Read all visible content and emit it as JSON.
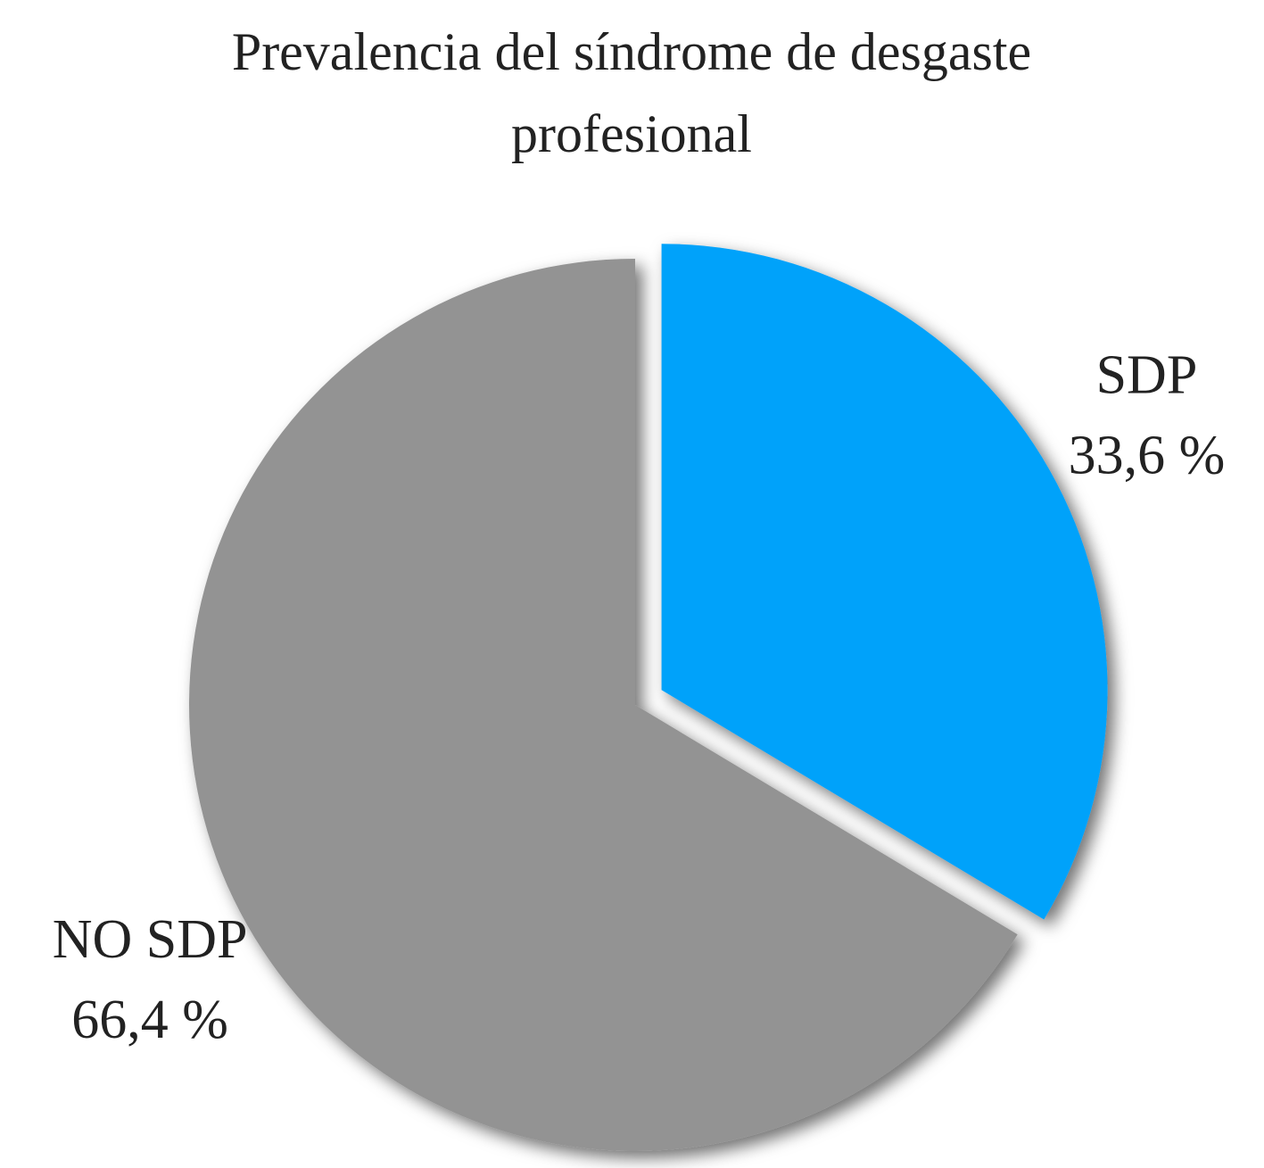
{
  "chart_data": {
    "type": "pie",
    "title": "Prevalencia del síndrome de desgaste profesional",
    "categories": [
      "SDP",
      "NO SDP"
    ],
    "values": [
      33.6,
      66.4
    ],
    "value_labels": [
      "33,6 %",
      "66,4 %"
    ],
    "colors": [
      "#03a2fa",
      "#939393"
    ],
    "exploded": [
      true,
      false
    ]
  }
}
